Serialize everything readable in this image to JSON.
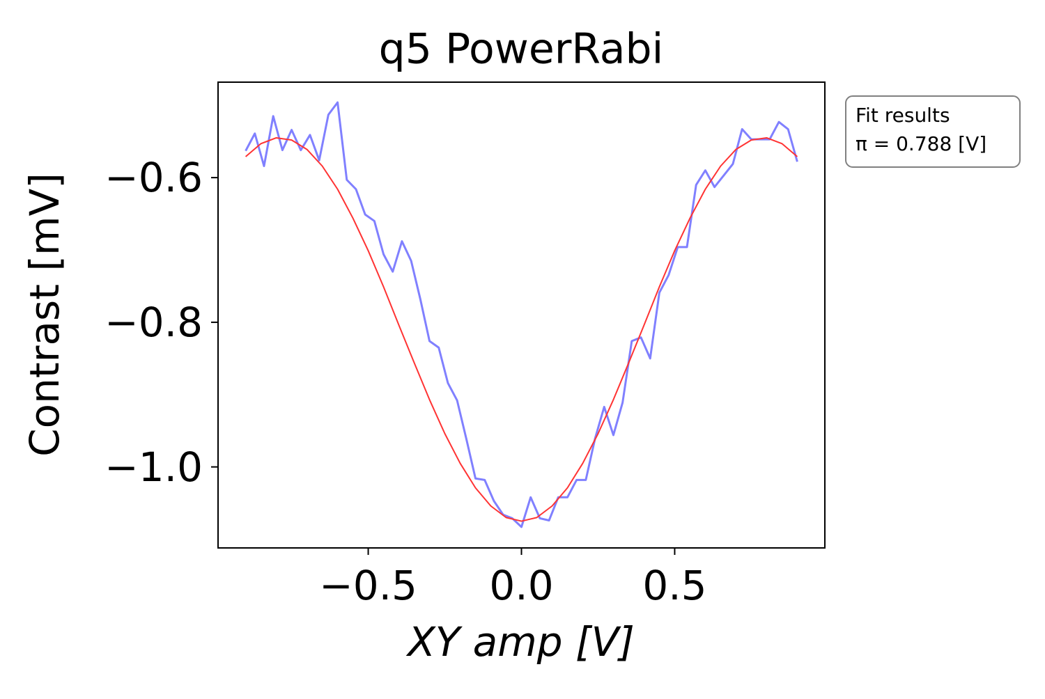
{
  "chart_data": {
    "type": "line",
    "title": "q5 PowerRabi",
    "xlabel": "XY amp [V]",
    "ylabel": "Contrast [mV]",
    "xlim": [
      -0.99,
      0.99
    ],
    "ylim": [
      -1.112,
      -0.468
    ],
    "xticks": [
      {
        "value": -0.5,
        "label": "−0.5"
      },
      {
        "value": 0,
        "label": "0.0"
      },
      {
        "value": 0.5,
        "label": "0.5"
      }
    ],
    "yticks": [
      {
        "value": -0.6,
        "label": "−0.6"
      },
      {
        "value": -0.8,
        "label": "−0.8"
      },
      {
        "value": -1.0,
        "label": "−1.0"
      }
    ],
    "grid": false,
    "annotation": [
      "Fit results",
      "π = 0.788 [V]"
    ],
    "series": [
      {
        "color": "#8080ff",
        "width": 3,
        "x": [
          -0.9,
          -0.87,
          -0.84,
          -0.81,
          -0.78,
          -0.75,
          -0.72,
          -0.69,
          -0.66,
          -0.63,
          -0.6,
          -0.57,
          -0.54,
          -0.51,
          -0.48,
          -0.45,
          -0.42,
          -0.39,
          -0.36,
          -0.33,
          -0.3,
          -0.27,
          -0.24,
          -0.21,
          -0.18,
          -0.15,
          -0.12,
          -0.09,
          -0.06,
          -0.03,
          0,
          0.03,
          0.06,
          0.09,
          0.12,
          0.15,
          0.18,
          0.21,
          0.24,
          0.27,
          0.3,
          0.33,
          0.36,
          0.39,
          0.42,
          0.45,
          0.48,
          0.51,
          0.54,
          0.57,
          0.6,
          0.63,
          0.66,
          0.69,
          0.72,
          0.75,
          0.78,
          0.81,
          0.84,
          0.87,
          0.9
        ],
        "values": [
          -0.563,
          -0.539,
          -0.584,
          -0.515,
          -0.562,
          -0.534,
          -0.562,
          -0.541,
          -0.576,
          -0.513,
          -0.496,
          -0.603,
          -0.616,
          -0.651,
          -0.66,
          -0.706,
          -0.73,
          -0.688,
          -0.715,
          -0.768,
          -0.826,
          -0.835,
          -0.884,
          -0.908,
          -0.961,
          -1.016,
          -1.018,
          -1.047,
          -1.066,
          -1.071,
          -1.083,
          -1.042,
          -1.071,
          -1.074,
          -1.042,
          -1.042,
          -1.018,
          -1.018,
          -0.961,
          -0.917,
          -0.956,
          -0.911,
          -0.826,
          -0.821,
          -0.85,
          -0.759,
          -0.735,
          -0.696,
          -0.696,
          -0.61,
          -0.59,
          -0.613,
          -0.597,
          -0.581,
          -0.533,
          -0.547,
          -0.547,
          -0.547,
          -0.523,
          -0.533,
          -0.578
        ]
      },
      {
        "color": "#ff3333",
        "width": 2,
        "x": [
          -0.9,
          -0.85,
          -0.8,
          -0.75,
          -0.7,
          -0.65,
          -0.6,
          -0.55,
          -0.5,
          -0.45,
          -0.4,
          -0.35,
          -0.3,
          -0.25,
          -0.2,
          -0.15,
          -0.1,
          -0.05,
          0,
          0.05,
          0.1,
          0.15,
          0.2,
          0.25,
          0.3,
          0.35,
          0.4,
          0.45,
          0.5,
          0.55,
          0.6,
          0.65,
          0.7,
          0.75,
          0.8,
          0.85,
          0.9
        ],
        "values": [
          -0.571,
          -0.553,
          -0.545,
          -0.548,
          -0.561,
          -0.584,
          -0.616,
          -0.656,
          -0.701,
          -0.751,
          -0.804,
          -0.856,
          -0.907,
          -0.954,
          -0.995,
          -1.029,
          -1.054,
          -1.07,
          -1.075,
          -1.07,
          -1.054,
          -1.029,
          -0.995,
          -0.954,
          -0.907,
          -0.856,
          -0.804,
          -0.751,
          -0.701,
          -0.656,
          -0.616,
          -0.584,
          -0.561,
          -0.548,
          -0.545,
          -0.553,
          -0.571
        ]
      }
    ]
  }
}
